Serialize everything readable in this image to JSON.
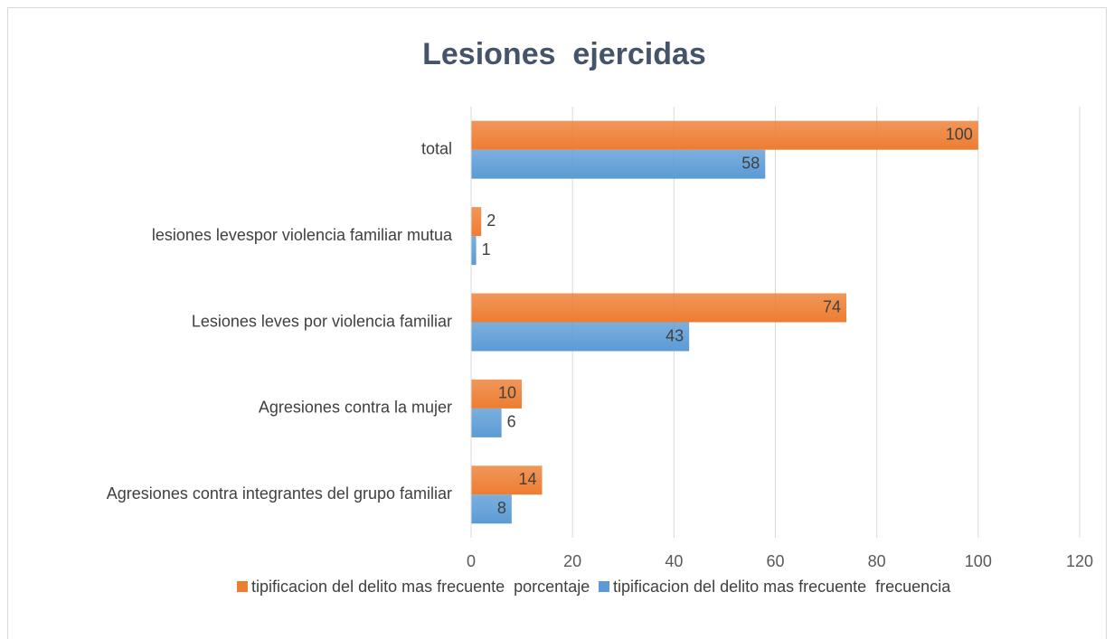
{
  "chart_data": {
    "type": "barh",
    "title": "Lesiones  ejercidas",
    "categories": [
      "Agresiones contra integrantes del grupo familiar",
      "Agresiones contra la mujer",
      "Lesiones leves por violencia familiar",
      "lesiones levespor violencia familiar mutua",
      "total"
    ],
    "series": [
      {
        "name": "tipificacion del delito mas frecuente  porcentaje",
        "color": "#ed7d31",
        "values": [
          14,
          10,
          74,
          2,
          100
        ]
      },
      {
        "name": "tipificacion del delito mas frecuente  frecuencia",
        "color": "#5b9bd5",
        "values": [
          8,
          6,
          43,
          1,
          58
        ]
      }
    ],
    "xlim": [
      0,
      120
    ],
    "xticks": [
      0,
      20,
      40,
      60,
      80,
      100,
      120
    ],
    "grid": true,
    "legend": "bottom"
  }
}
